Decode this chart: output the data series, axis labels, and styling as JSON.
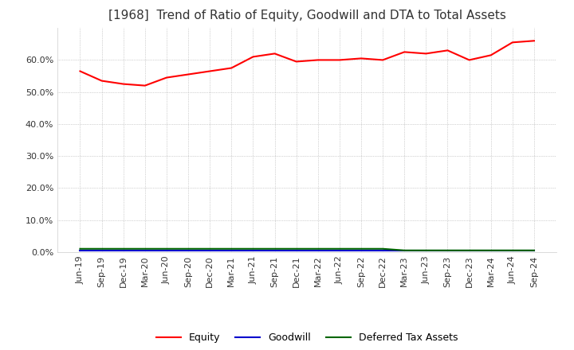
{
  "title": "[1968]  Trend of Ratio of Equity, Goodwill and DTA to Total Assets",
  "x_labels": [
    "Jun-19",
    "Sep-19",
    "Dec-19",
    "Mar-20",
    "Jun-20",
    "Sep-20",
    "Dec-20",
    "Mar-21",
    "Jun-21",
    "Sep-21",
    "Dec-21",
    "Mar-22",
    "Jun-22",
    "Sep-22",
    "Dec-22",
    "Mar-23",
    "Jun-23",
    "Sep-23",
    "Dec-23",
    "Mar-24",
    "Jun-24",
    "Sep-24"
  ],
  "equity": [
    56.5,
    53.5,
    52.5,
    52.0,
    54.5,
    55.5,
    56.5,
    57.5,
    61.0,
    62.0,
    59.5,
    60.0,
    60.0,
    60.5,
    60.0,
    62.5,
    62.0,
    63.0,
    60.0,
    61.5,
    65.5,
    66.0
  ],
  "goodwill": [
    0.4,
    0.4,
    0.4,
    0.4,
    0.4,
    0.4,
    0.4,
    0.4,
    0.4,
    0.4,
    0.4,
    0.4,
    0.4,
    0.4,
    0.4,
    0.4,
    0.4,
    0.4,
    0.4,
    0.4,
    0.4,
    0.4
  ],
  "dta": [
    1.0,
    1.0,
    1.0,
    1.0,
    1.0,
    1.0,
    1.0,
    1.0,
    1.0,
    1.0,
    1.0,
    1.0,
    1.0,
    1.0,
    1.0,
    0.5,
    0.5,
    0.5,
    0.5,
    0.5,
    0.5,
    0.5
  ],
  "equity_color": "#ff0000",
  "goodwill_color": "#0000cc",
  "dta_color": "#006600",
  "ylim": [
    0,
    70
  ],
  "yticks": [
    0,
    10,
    20,
    30,
    40,
    50,
    60
  ],
  "title_fontsize": 11,
  "legend_labels": [
    "Equity",
    "Goodwill",
    "Deferred Tax Assets"
  ],
  "background_color": "#ffffff",
  "plot_bg_color": "#ffffff",
  "grid_color": "#aaaaaa"
}
